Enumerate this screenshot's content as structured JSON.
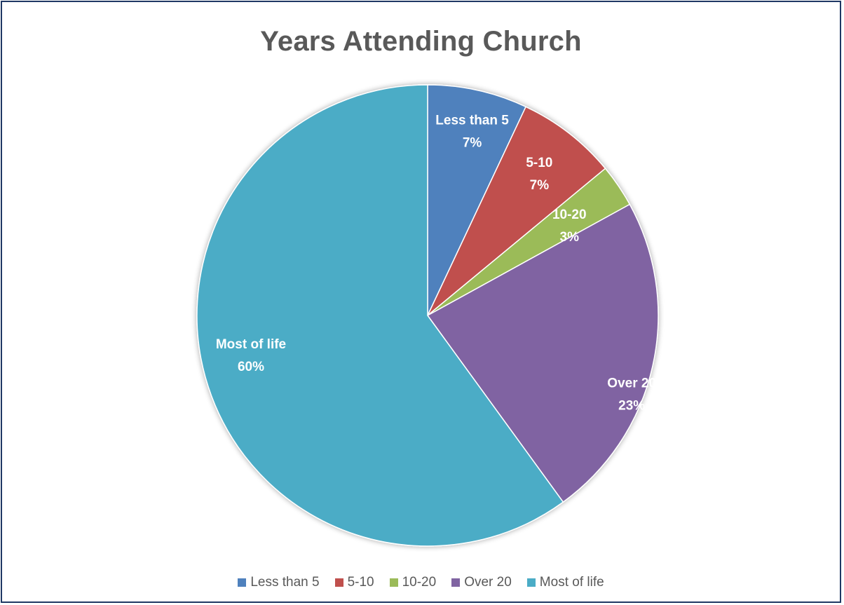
{
  "chart_data": {
    "type": "pie",
    "title": "Years Attending Church",
    "categories": [
      "Less than 5",
      "5-10",
      "10-20",
      "Over 20",
      "Most of life"
    ],
    "values": [
      7,
      7,
      3,
      23,
      60
    ],
    "labels": [
      {
        "category": "Less than 5",
        "percent": "7%"
      },
      {
        "category": "5-10",
        "percent": "7%"
      },
      {
        "category": "10-20",
        "percent": "3%"
      },
      {
        "category": "Over 20",
        "percent": "23%"
      },
      {
        "category": "Most of life",
        "percent": "60%"
      }
    ],
    "colors": [
      "#4f81bd",
      "#c0504d",
      "#9bbb59",
      "#8064a2",
      "#4bacc6"
    ],
    "legend_position": "bottom"
  }
}
